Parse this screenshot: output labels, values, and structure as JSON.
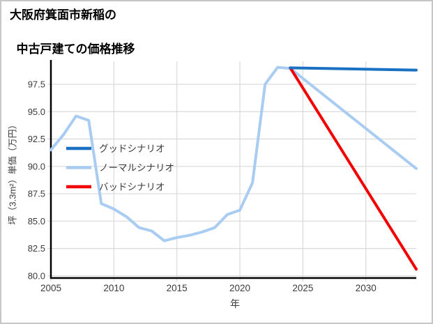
{
  "chart_data": {
    "type": "line",
    "title_lines": [
      "大阪府箕面市新稲の",
      "中古戸建ての価格推移"
    ],
    "xlabel": "年",
    "ylabel": "坪（3.3m²）単価（万円）",
    "xlim": [
      2005,
      2034
    ],
    "ylim": [
      79.8,
      99.6
    ],
    "xticks": [
      2005,
      2010,
      2015,
      2020,
      2025,
      2030
    ],
    "yticks": [
      80.0,
      82.5,
      85.0,
      87.5,
      90.0,
      92.5,
      95.0,
      97.5
    ],
    "ytick_labels": [
      "80.0",
      "82.5",
      "85.0",
      "87.5",
      "90.0",
      "92.5",
      "95.0",
      "97.5"
    ],
    "grid": true,
    "legend_position": "inside center-left",
    "colors": {
      "good": "#1a70c2",
      "normal": "#a9ccf2",
      "bad": "#f20000",
      "grid": "#d9d9d9",
      "spine": "#000000",
      "tick_text": "#3b3b3b",
      "legend_text": "#3b3b3b"
    },
    "series": [
      {
        "name": "グッドシナリオ",
        "color_key": "good",
        "z": 3,
        "x": [
          2024,
          2034
        ],
        "y": [
          99.0,
          98.8
        ]
      },
      {
        "name": "ノーマルシナリオ",
        "color_key": "normal",
        "z": 1,
        "x": [
          2005,
          2006,
          2007,
          2008,
          2009,
          2010,
          2011,
          2012,
          2013,
          2014,
          2015,
          2016,
          2017,
          2018,
          2019,
          2020,
          2021,
          2022,
          2023,
          2024,
          2034
        ],
        "y": [
          91.5,
          92.9,
          94.6,
          94.2,
          86.6,
          86.1,
          85.4,
          84.4,
          84.1,
          83.2,
          83.5,
          83.7,
          84.0,
          84.4,
          85.6,
          86.0,
          88.5,
          97.5,
          99.05,
          98.95,
          89.8
        ]
      },
      {
        "name": "バッドシナリオ",
        "color_key": "bad",
        "z": 2,
        "x": [
          2024,
          2034
        ],
        "y": [
          99.0,
          80.6
        ]
      }
    ]
  }
}
